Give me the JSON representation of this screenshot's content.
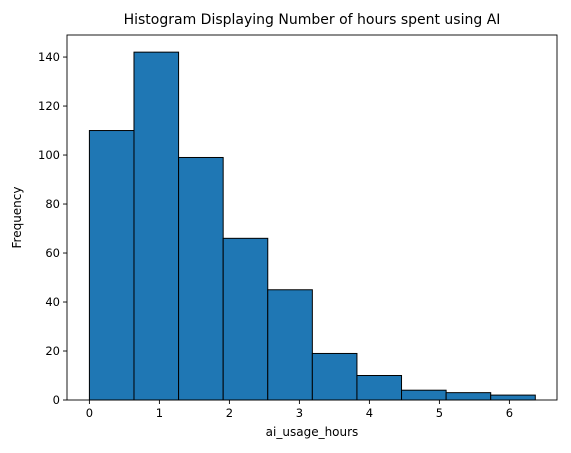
{
  "chart_data": {
    "type": "bar",
    "title": "Histogram Displaying Number of hours spent using AI",
    "xlabel": "ai_usage_hours",
    "ylabel": "Frequency",
    "xlim": [
      -0.32,
      6.68
    ],
    "ylim": [
      0,
      149
    ],
    "xticks": [
      0,
      1,
      2,
      3,
      4,
      5,
      6
    ],
    "yticks": [
      0,
      20,
      40,
      60,
      80,
      100,
      120,
      140
    ],
    "bin_edges": [
      0.0,
      0.637,
      1.274,
      1.911,
      2.548,
      3.185,
      3.822,
      4.459,
      5.096,
      5.733,
      6.37
    ],
    "values": [
      110,
      142,
      99,
      66,
      45,
      19,
      10,
      4,
      3,
      2
    ],
    "grid": false,
    "bar_color": "#1f77b4",
    "edge_color": "#000000"
  }
}
